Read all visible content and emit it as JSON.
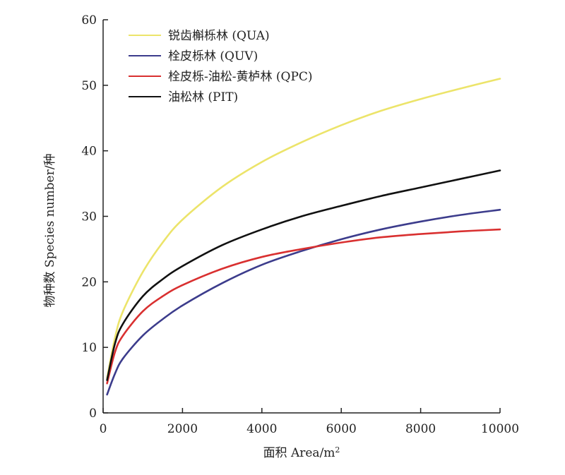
{
  "chart_data": {
    "type": "line",
    "xlabel": "面积 Area/m",
    "xlabel_superscript": "2",
    "ylabel": "物种数 Species number/种",
    "xlim": [
      0,
      10000
    ],
    "ylim": [
      0,
      60
    ],
    "xticks": [
      0,
      2000,
      4000,
      6000,
      8000,
      10000
    ],
    "yticks": [
      0,
      10,
      20,
      30,
      40,
      50,
      60
    ],
    "grid": false,
    "legend_position": "top-left",
    "series": [
      {
        "name": "锐齿槲栎林 (QUA)",
        "color": "#ece46a",
        "x": [
          100,
          300,
          500,
          1000,
          1500,
          2000,
          3000,
          4000,
          5000,
          6000,
          7000,
          8000,
          9000,
          10000
        ],
        "y": [
          5.3,
          11.5,
          15.5,
          21.5,
          26.0,
          29.5,
          34.5,
          38.3,
          41.3,
          43.9,
          46.1,
          47.9,
          49.5,
          51.0
        ]
      },
      {
        "name": "栓皮栎林 (QUV)",
        "color": "#3c3c8c",
        "x": [
          100,
          300,
          500,
          1000,
          1500,
          2000,
          3000,
          4000,
          5000,
          6000,
          7000,
          8000,
          9000,
          10000
        ],
        "y": [
          2.8,
          6.0,
          8.3,
          11.8,
          14.3,
          16.4,
          19.8,
          22.6,
          24.7,
          26.5,
          28.0,
          29.2,
          30.2,
          31.0
        ]
      },
      {
        "name": "栓皮栎-油松-黄栌林 (QPC)",
        "color": "#d93030",
        "x": [
          100,
          300,
          500,
          1000,
          1500,
          2000,
          3000,
          4000,
          5000,
          6000,
          7000,
          8000,
          9000,
          10000
        ],
        "y": [
          4.5,
          9.3,
          11.8,
          15.5,
          17.8,
          19.5,
          22.0,
          23.8,
          25.0,
          26.0,
          26.8,
          27.3,
          27.7,
          28.0
        ]
      },
      {
        "name": "油松林 (PIT)",
        "color": "#111111",
        "x": [
          100,
          300,
          500,
          1000,
          1500,
          2000,
          3000,
          4000,
          5000,
          6000,
          7000,
          8000,
          9000,
          10000
        ],
        "y": [
          5.0,
          10.6,
          13.6,
          17.8,
          20.4,
          22.4,
          25.6,
          28.0,
          30.0,
          31.6,
          33.1,
          34.4,
          35.7,
          37.0
        ]
      }
    ]
  }
}
